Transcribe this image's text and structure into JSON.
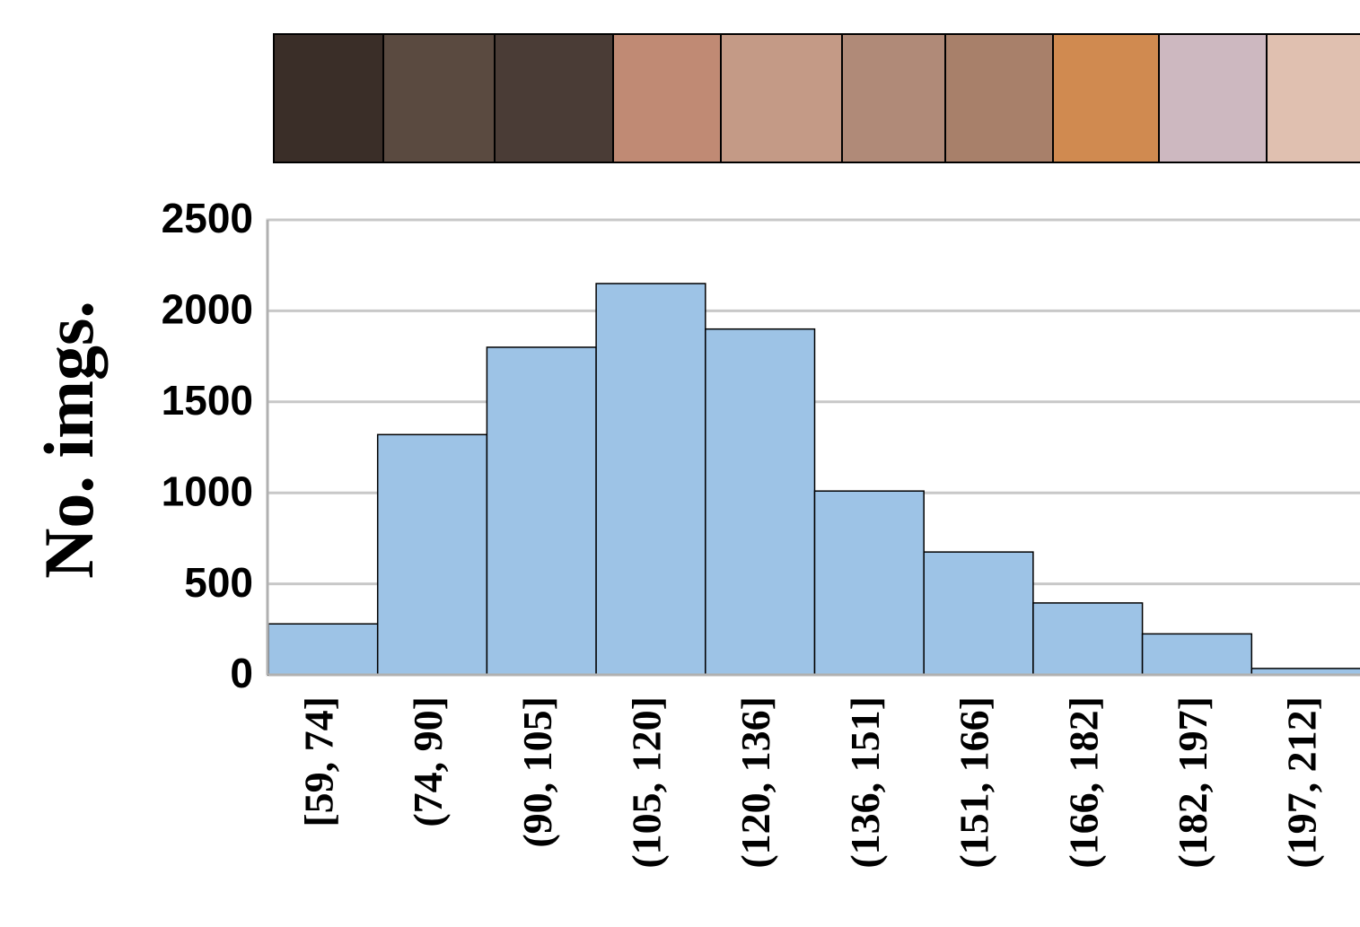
{
  "chart_data": {
    "type": "bar",
    "y_label": "No. imgs.",
    "categories": [
      "[59, 74]",
      "(74, 90]",
      "(90, 105]",
      "(105, 120]",
      "(120, 136]",
      "(136, 151]",
      "(151, 166]",
      "(166, 182]",
      "(182, 197]",
      "(197, 212]"
    ],
    "values": [
      280,
      1320,
      1800,
      2150,
      1900,
      1010,
      675,
      395,
      225,
      35
    ],
    "color": "#9dc3e6",
    "ylim": [
      0,
      2500
    ],
    "yticks": [
      0,
      500,
      1000,
      1500,
      2000,
      2500
    ],
    "grid": true
  }
}
